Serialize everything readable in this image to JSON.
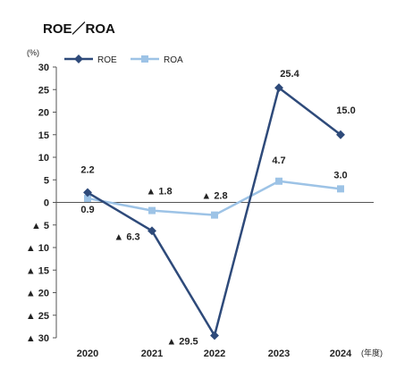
{
  "chart_data": {
    "type": "line",
    "title": "ROE／ROA",
    "y_unit": "(%)",
    "x_unit": "(年度)",
    "categories": [
      "2020",
      "2021",
      "2022",
      "2023",
      "2024"
    ],
    "ylim": [
      -30,
      30
    ],
    "y_ticks": [
      30,
      25,
      20,
      15,
      10,
      5,
      0,
      -5,
      -10,
      -15,
      -20,
      -25,
      -30
    ],
    "y_tick_labels": [
      "30",
      "25",
      "20",
      "15",
      "10",
      "5",
      "0",
      "▲ 5",
      "▲ 10",
      "▲ 15",
      "▲ 20",
      "▲ 25",
      "▲ 30"
    ],
    "legend_position": "top-left",
    "grid": false,
    "series": [
      {
        "name": "ROE",
        "color": "#2e4a7a",
        "marker": "diamond",
        "values": [
          2.2,
          -6.3,
          -29.5,
          25.4,
          15.0
        ],
        "labels": [
          "2.2",
          "▲ 6.3",
          "▲ 29.5",
          "25.4",
          "15.0"
        ]
      },
      {
        "name": "ROA",
        "color": "#9dc3e6",
        "marker": "square",
        "values": [
          0.9,
          -1.8,
          -2.8,
          4.7,
          3.0
        ],
        "labels": [
          "0.9",
          "▲ 1.8",
          "▲ 2.8",
          "4.7",
          "3.0"
        ]
      }
    ]
  }
}
